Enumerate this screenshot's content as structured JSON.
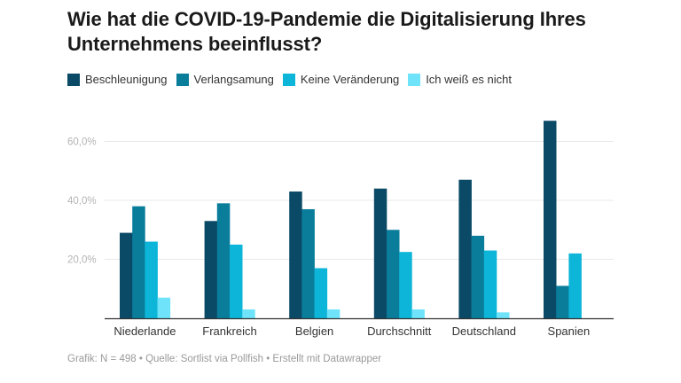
{
  "title": "Wie hat die COVID-19-Pandemie die Digitalisierung Ihres Unternehmens beeinflusst?",
  "footer": "Grafik: N = 498 • Quelle: Sortlist via Pollfish • Erstellt mit Datawrapper",
  "chart_data": {
    "type": "bar",
    "title": "Wie hat die COVID-19-Pandemie die Digitalisierung Ihres Unternehmens beeinflusst?",
    "xlabel": "",
    "ylabel": "",
    "ylim": [
      0,
      70
    ],
    "yticks": [
      20,
      40,
      60
    ],
    "ytick_labels": [
      "20,0%",
      "40,0%",
      "60,0%"
    ],
    "grid": true,
    "legend_position": "top-left",
    "categories": [
      "Niederlande",
      "Frankreich",
      "Belgien",
      "Durchschnitt",
      "Deutschland",
      "Spanien"
    ],
    "series": [
      {
        "name": "Beschleunigung",
        "color": "#0b4a66",
        "values": [
          29,
          33,
          43,
          44,
          47,
          67
        ]
      },
      {
        "name": "Verlangsamung",
        "color": "#0a7d9b",
        "values": [
          38,
          39,
          37,
          30,
          28,
          11
        ]
      },
      {
        "name": "Keine Veränderung",
        "color": "#0db6d8",
        "values": [
          26,
          25,
          17,
          22.5,
          23,
          22
        ]
      },
      {
        "name": "Ich weiß es nicht",
        "color": "#6ee3fa",
        "values": [
          7,
          3,
          3,
          3,
          2,
          0
        ]
      }
    ]
  }
}
